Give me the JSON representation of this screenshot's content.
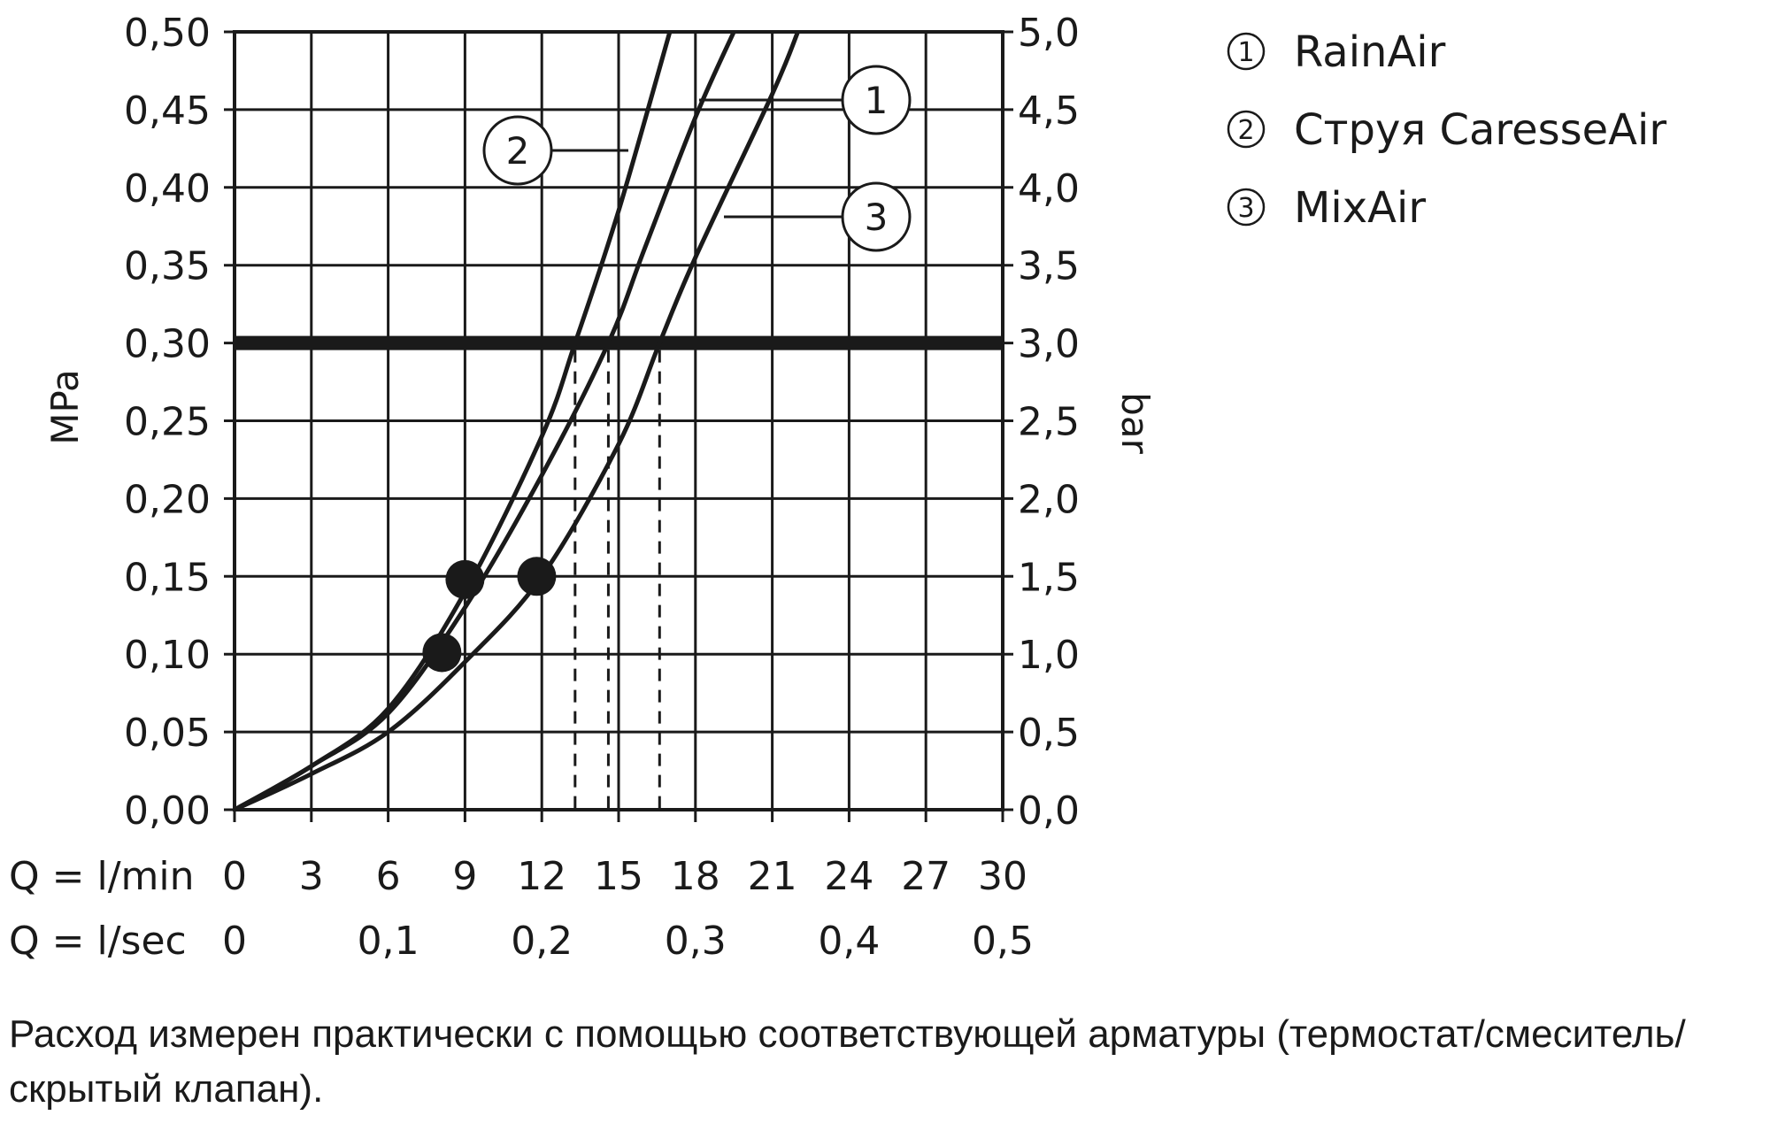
{
  "chart_data": {
    "type": "line",
    "y_left": {
      "label": "MPa",
      "min": 0,
      "max": 0.5,
      "step": 0.05,
      "ticks": [
        "0,00",
        "0,05",
        "0,10",
        "0,15",
        "0,20",
        "0,25",
        "0,30",
        "0,35",
        "0,40",
        "0,45",
        "0,50"
      ]
    },
    "y_right": {
      "label": "bar",
      "min": 0,
      "max": 5,
      "step": 0.5,
      "ticks": [
        "0,0",
        "0,5",
        "1,0",
        "1,5",
        "2,0",
        "2,5",
        "3,0",
        "3,5",
        "4,0",
        "4,5",
        "5,0"
      ]
    },
    "x_primary": {
      "label": "Q = l/min",
      "min": 0,
      "max": 30,
      "ticks": [
        "0",
        "3",
        "6",
        "9",
        "12",
        "15",
        "18",
        "21",
        "24",
        "27",
        "30"
      ]
    },
    "x_secondary": {
      "label": "Q = l/sec",
      "ticks": [
        {
          "text": "0",
          "value": 0
        },
        {
          "text": "0,1",
          "value": 6
        },
        {
          "text": "0,2",
          "value": 12
        },
        {
          "text": "0,3",
          "value": 18
        },
        {
          "text": "0,4",
          "value": 24
        },
        {
          "text": "0,5",
          "value": 30
        }
      ]
    },
    "grid": true,
    "reference_line": {
      "y": 0.3
    },
    "series": [
      {
        "name": "1",
        "flow_at_0_30_MPa": 14.6,
        "points": [
          [
            0,
            0
          ],
          [
            3,
            0.028
          ],
          [
            6,
            0.062
          ],
          [
            9,
            0.13
          ],
          [
            12,
            0.215
          ],
          [
            14.6,
            0.3
          ],
          [
            16,
            0.36
          ],
          [
            18,
            0.445
          ],
          [
            19.5,
            0.5
          ]
        ]
      },
      {
        "name": "2",
        "flow_at_0_30_MPa": 13.3,
        "points": [
          [
            0,
            0
          ],
          [
            3,
            0.028
          ],
          [
            6,
            0.065
          ],
          [
            9,
            0.14
          ],
          [
            12,
            0.24
          ],
          [
            13.3,
            0.3
          ],
          [
            15,
            0.385
          ],
          [
            17,
            0.5
          ]
        ]
      },
      {
        "name": "3",
        "flow_at_0_30_MPa": 16.6,
        "points": [
          [
            0,
            0
          ],
          [
            3,
            0.023
          ],
          [
            6,
            0.05
          ],
          [
            9,
            0.095
          ],
          [
            12,
            0.15
          ],
          [
            15,
            0.235
          ],
          [
            16.6,
            0.3
          ],
          [
            18,
            0.355
          ],
          [
            21,
            0.46
          ],
          [
            22,
            0.5
          ]
        ]
      }
    ],
    "markers": [
      {
        "series": "1",
        "x": 9.0,
        "y": 0.148
      },
      {
        "series": "2",
        "x": 8.1,
        "y": 0.101
      },
      {
        "series": "3",
        "x": 11.8,
        "y": 0.15
      }
    ]
  },
  "legend": [
    {
      "num": "1",
      "text": "RainAir"
    },
    {
      "num": "2",
      "text": "Струя CaresseAir"
    },
    {
      "num": "3",
      "text": "MixAir"
    }
  ],
  "note": "Расход измерен практически с помощью соответствующей арматуры (термостат/смеситель/скрытый клапан)."
}
